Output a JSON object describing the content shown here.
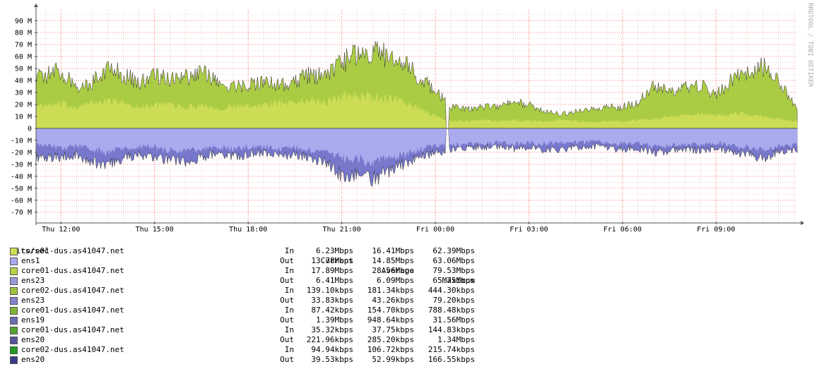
{
  "vertical_label": "RRDTOOL / TOBI OETIKER",
  "legend_header": {
    "unit": "Bits/sec",
    "current": "Current",
    "average": "Average",
    "maximum": "Maximum"
  },
  "legend": [
    {
      "name": "core01-dus.as41047.net",
      "dir": "In",
      "current": "6.23Mbps",
      "average": "16.41Mbps",
      "maximum": "62.39Mbps",
      "color": "#ccdd55"
    },
    {
      "name": "ens1",
      "dir": "Out",
      "current": "13.78Mbps",
      "average": "14.85Mbps",
      "maximum": "63.06Mbps",
      "color": "#aaaaee"
    },
    {
      "name": "core01-dus.as41047.net",
      "dir": "In",
      "current": "17.89Mbps",
      "average": "28.56Mbps",
      "maximum": "79.53Mbps",
      "color": "#b5d44a"
    },
    {
      "name": "ens23",
      "dir": "Out",
      "current": "6.41Mbps",
      "average": "6.09Mbps",
      "maximum": "65.75Mbps",
      "color": "#9a9adc"
    },
    {
      "name": "core02-dus.as41047.net",
      "dir": "In",
      "current": "139.10kbps",
      "average": "181.34kbps",
      "maximum": "444.30kbps",
      "color": "#9cc440"
    },
    {
      "name": "ens23",
      "dir": "Out",
      "current": "33.83kbps",
      "average": "43.26kbps",
      "maximum": "79.20kbps",
      "color": "#8484cc"
    },
    {
      "name": "core01-dus.as41047.net",
      "dir": "In",
      "current": "87.42kbps",
      "average": "154.70kbps",
      "maximum": "788.48kbps",
      "color": "#7fb535"
    },
    {
      "name": "ens19",
      "dir": "Out",
      "current": "1.39Mbps",
      "average": "948.64kbps",
      "maximum": "31.56Mbps",
      "color": "#6c6cb4"
    },
    {
      "name": "core01-dus.as41047.net",
      "dir": "In",
      "current": "35.32kbps",
      "average": "37.75kbps",
      "maximum": "144.83kbps",
      "color": "#55a430"
    },
    {
      "name": "ens20",
      "dir": "Out",
      "current": "221.96kbps",
      "average": "285.20kbps",
      "maximum": "1.34Mbps",
      "color": "#55559c"
    },
    {
      "name": "core02-dus.as41047.net",
      "dir": "In",
      "current": "94.94kbps",
      "average": "106.72kbps",
      "maximum": "215.74kbps",
      "color": "#229922"
    },
    {
      "name": "ens20",
      "dir": "Out",
      "current": "39.53kbps",
      "average": "52.99kbps",
      "maximum": "166.55kbps",
      "color": "#3a3a88"
    }
  ],
  "chart_data": {
    "type": "area",
    "ylim": [
      -79,
      99
    ],
    "y_ticks": [
      90,
      80,
      70,
      60,
      50,
      40,
      30,
      20,
      10,
      0,
      -10,
      -20,
      -30,
      -40,
      -50,
      -60,
      -70
    ],
    "y_tick_labels": [
      "90 M",
      "80 M",
      "70 M",
      "60 M",
      "50 M",
      "40 M",
      "30 M",
      "20 M",
      "10 M",
      "0",
      "-10 M",
      "-20 M",
      "-30 M",
      "-40 M",
      "-50 M",
      "-60 M",
      "-70 M"
    ],
    "x_ticks": [
      12,
      15,
      18,
      21,
      24,
      27,
      30,
      33
    ],
    "x_tick_labels": [
      "Thu 12:00",
      "Thu 15:00",
      "Thu 18:00",
      "Thu 21:00",
      "Fri 00:00",
      "Fri 03:00",
      "Fri 06:00",
      "Fri 09:00"
    ],
    "xlim": [
      11.2,
      35.6
    ],
    "grid": true,
    "series": [
      {
        "name": "core01-dus.as41047.net In",
        "x": [
          11.2,
          12,
          12.5,
          13,
          13.5,
          14,
          14.5,
          15,
          15.5,
          16,
          16.5,
          17,
          17.5,
          18,
          18.5,
          19,
          19.5,
          20,
          20.5,
          21,
          21.5,
          22,
          22.5,
          23,
          23.5,
          24,
          24.5,
          25,
          25.5,
          26,
          26.5,
          27,
          27.5,
          28,
          28.5,
          29,
          29.5,
          30,
          30.5,
          31,
          31.5,
          32,
          32.5,
          33,
          33.5,
          34,
          34.5,
          35,
          35.6
        ],
        "values": [
          18,
          20,
          18,
          21,
          23,
          22,
          18,
          20,
          19,
          18,
          20,
          17,
          18,
          19,
          20,
          22,
          22,
          23,
          22,
          28,
          27,
          26,
          25,
          22,
          16,
          10,
          6,
          6,
          7,
          6,
          7,
          6,
          6,
          7,
          6,
          5,
          6,
          6,
          7,
          8,
          10,
          11,
          12,
          11,
          12,
          12,
          10,
          8,
          6
        ]
      },
      {
        "name": "core01-dus.as41047.net In",
        "x": [
          11.2,
          12,
          12.5,
          13,
          13.5,
          14,
          14.5,
          15,
          15.5,
          16,
          16.5,
          17,
          17.5,
          18,
          18.5,
          19,
          19.5,
          20,
          20.5,
          21,
          21.5,
          22,
          22.5,
          23,
          23.5,
          24,
          24.5,
          25,
          25.5,
          26,
          26.5,
          27,
          27.5,
          28,
          28.5,
          29,
          29.5,
          30,
          30.5,
          31,
          31.5,
          32,
          32.5,
          33,
          33.5,
          34,
          34.5,
          35,
          35.6
        ],
        "values": [
          42,
          48,
          35,
          38,
          52,
          45,
          38,
          44,
          40,
          42,
          48,
          38,
          34,
          37,
          38,
          36,
          40,
          45,
          42,
          55,
          62,
          65,
          60,
          54,
          42,
          32,
          18,
          16,
          18,
          18,
          22,
          20,
          14,
          12,
          14,
          16,
          18,
          18,
          22,
          35,
          30,
          34,
          36,
          28,
          40,
          48,
          52,
          38,
          18
        ]
      },
      {
        "name": "ens1 Out",
        "x": [
          11.2,
          12,
          12.5,
          13,
          13.5,
          14,
          14.5,
          15,
          15.5,
          16,
          16.5,
          17,
          17.5,
          18,
          18.5,
          19,
          19.5,
          20,
          20.5,
          21,
          21.5,
          22,
          22.5,
          23,
          23.5,
          24,
          24.5,
          25,
          25.5,
          26,
          26.5,
          27,
          27.5,
          28,
          28.5,
          29,
          29.5,
          30,
          30.5,
          31,
          31.5,
          32,
          32.5,
          33,
          33.5,
          34,
          34.5,
          35,
          35.6
        ],
        "values": [
          -14,
          -16,
          -15,
          -18,
          -20,
          -17,
          -15,
          -16,
          -18,
          -20,
          -17,
          -15,
          -18,
          -16,
          -15,
          -17,
          -16,
          -18,
          -20,
          -24,
          -26,
          -28,
          -24,
          -22,
          -18,
          -15,
          -14,
          -13,
          -13,
          -12,
          -13,
          -12,
          -13,
          -12,
          -12,
          -11,
          -12,
          -13,
          -12,
          -15,
          -14,
          -13,
          -14,
          -12,
          -15,
          -16,
          -18,
          -15,
          -14
        ]
      },
      {
        "name": "ens23 Out",
        "x": [
          11.2,
          12,
          12.5,
          13,
          13.5,
          14,
          14.5,
          15,
          15.5,
          16,
          16.5,
          17,
          17.5,
          18,
          18.5,
          19,
          19.5,
          20,
          20.5,
          21,
          21.5,
          22,
          22.5,
          23,
          23.5,
          24,
          24.5,
          25,
          25.5,
          26,
          26.5,
          27,
          27.5,
          28,
          28.5,
          29,
          29.5,
          30,
          30.5,
          31,
          31.5,
          32,
          32.5,
          33,
          33.5,
          34,
          34.5,
          35,
          35.6
        ],
        "values": [
          -25,
          -24,
          -22,
          -28,
          -30,
          -25,
          -22,
          -24,
          -26,
          -28,
          -25,
          -20,
          -24,
          -22,
          -20,
          -23,
          -22,
          -25,
          -28,
          -40,
          -38,
          -42,
          -36,
          -30,
          -24,
          -20,
          -18,
          -16,
          -16,
          -15,
          -17,
          -16,
          -18,
          -18,
          -16,
          -15,
          -16,
          -18,
          -17,
          -20,
          -19,
          -18,
          -19,
          -16,
          -20,
          -22,
          -25,
          -20,
          -18
        ]
      }
    ]
  }
}
